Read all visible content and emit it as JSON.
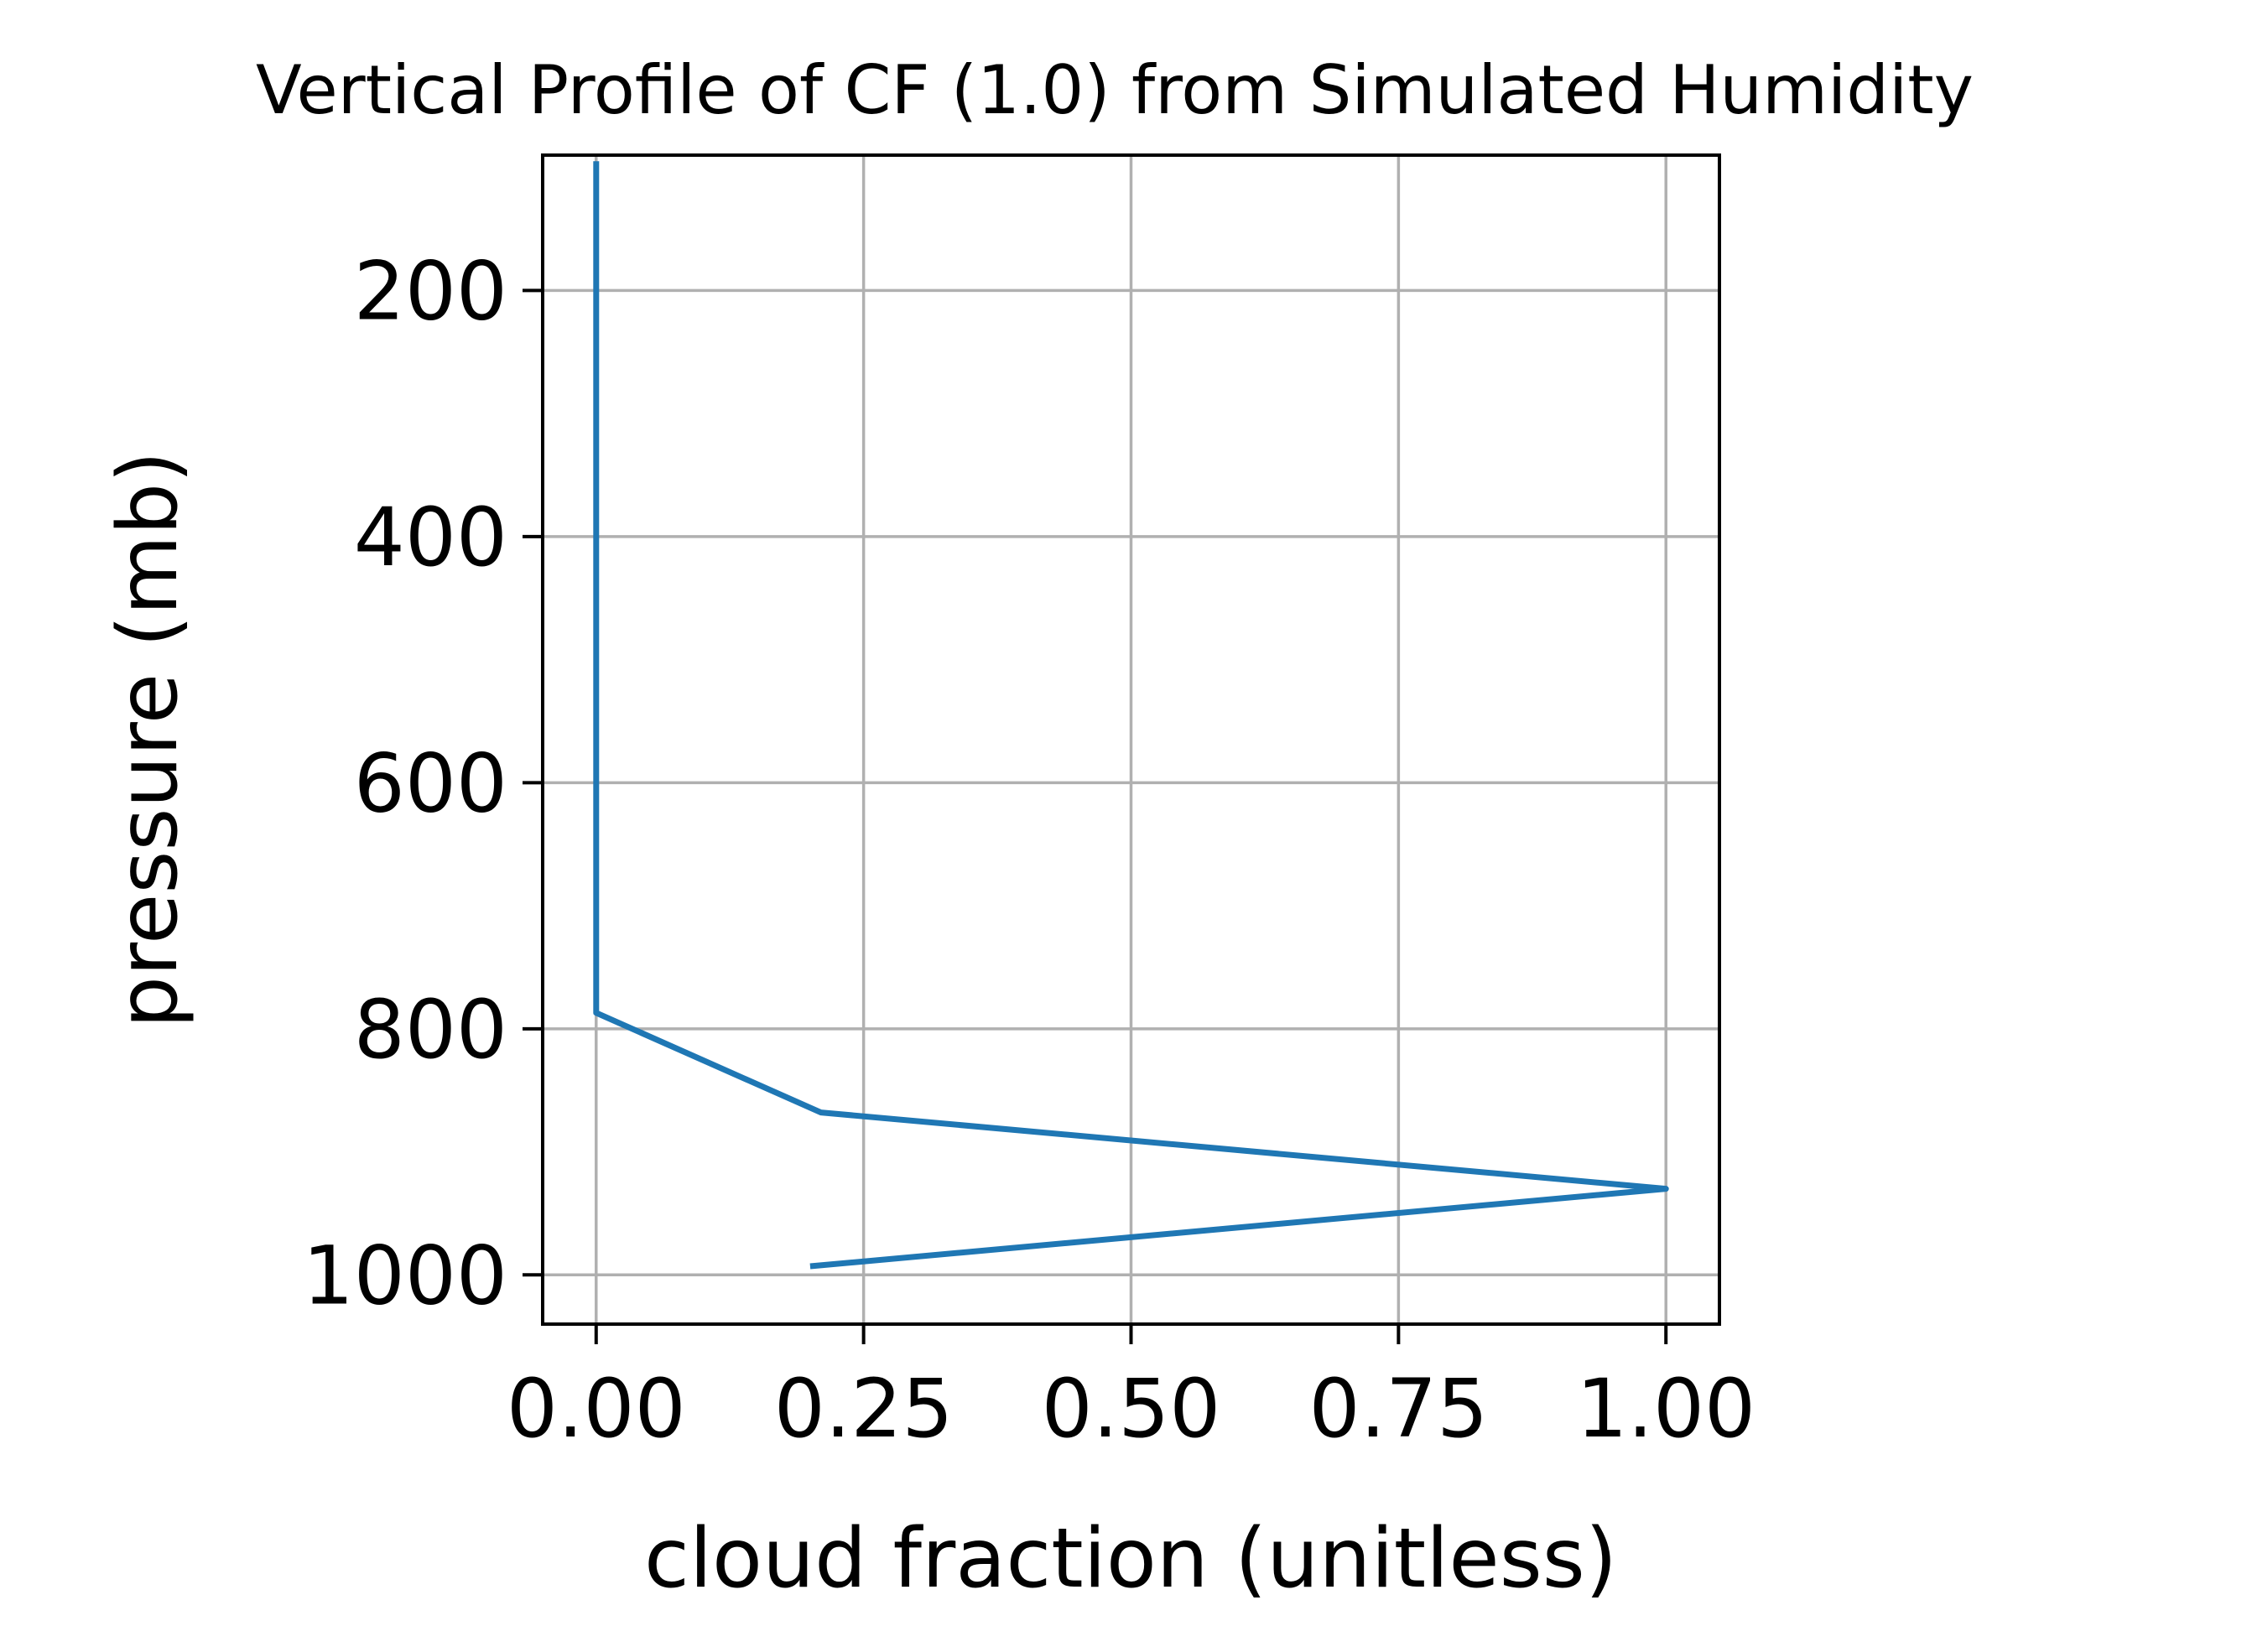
{
  "chart_data": {
    "type": "line",
    "title": "Vertical Profile of CF (1.0) from Simulated Humidity",
    "xlabel": "cloud fraction (unitless)",
    "ylabel": "pressure (mb)",
    "xlim": [
      -0.05,
      1.05
    ],
    "ylim": [
      1040,
      90
    ],
    "y_inverted": true,
    "grid": true,
    "xticks": [
      0.0,
      0.25,
      0.5,
      0.75,
      1.0
    ],
    "xtick_labels": [
      "0.00",
      "0.25",
      "0.50",
      "0.75",
      "1.00"
    ],
    "yticks": [
      200,
      400,
      600,
      800,
      1000
    ],
    "ytick_labels": [
      "200",
      "400",
      "600",
      "800",
      "1000"
    ],
    "series": [
      {
        "color": "#1f77b4",
        "x": [
          0.0,
          0.0,
          0.0,
          0.21,
          1.0,
          0.2
        ],
        "y": [
          95,
          600,
          787,
          868,
          930,
          993
        ]
      }
    ]
  },
  "colors": {
    "line": "#1f77b4",
    "grid": "#b0b0b0",
    "axes": "#000000"
  }
}
